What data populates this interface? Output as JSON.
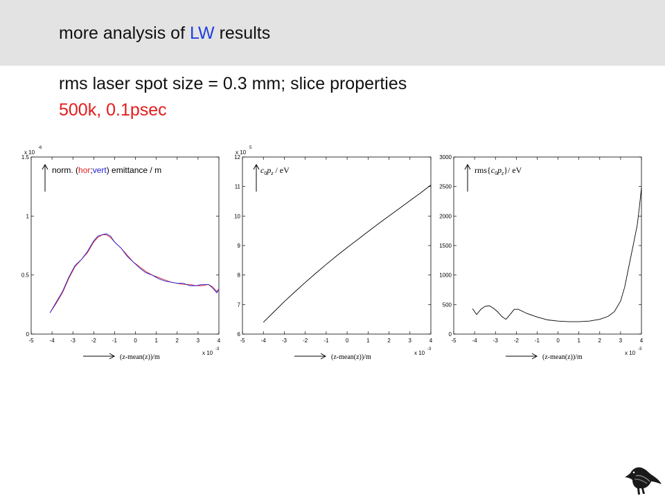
{
  "header": {
    "title_pre": "more analysis of ",
    "title_hl": "LW",
    "title_post": " results",
    "subtitle": "rms laser spot size = 0.3 mm; slice properties",
    "subtitle2": "500k, 0.1psec"
  },
  "colors": {
    "hor": "#e51b1b",
    "vert": "#1a1ad6",
    "accent_blue": "#1f3fe0",
    "accent_red": "#e51b1b"
  },
  "chart_data": [
    {
      "type": "line",
      "ylabel_parts": [
        "norm. (",
        "hor",
        ";",
        "vert",
        ") emittance / m"
      ],
      "xlabel": "(z-mean(z))/m",
      "xlim": [
        -5,
        4
      ],
      "ylim": [
        0,
        1.5
      ],
      "xticks": [
        "-5",
        "-4",
        "-3",
        "-2",
        "-1",
        "0",
        "1",
        "2",
        "3",
        "4"
      ],
      "yticks": [
        "0",
        "0.5",
        "1",
        "1.5"
      ],
      "ytick_values": [
        0,
        0.5,
        1,
        1.5
      ],
      "x_exponent": "x 10",
      "x_exponent_power": "-3",
      "y_exponent": "x 10",
      "y_exponent_power": "-6",
      "series": [
        {
          "name": "hor",
          "x": [
            -4.1,
            -3.8,
            -3.5,
            -3.2,
            -2.9,
            -2.6,
            -2.3,
            -2.0,
            -1.8,
            -1.6,
            -1.4,
            -1.2,
            -1.0,
            -0.7,
            -0.4,
            -0.1,
            0.2,
            0.5,
            0.8,
            1.1,
            1.4,
            1.7,
            2.0,
            2.3,
            2.6,
            2.9,
            3.2,
            3.5,
            3.7,
            3.9,
            4.0
          ],
          "values": [
            0.18,
            0.26,
            0.35,
            0.47,
            0.57,
            0.63,
            0.69,
            0.78,
            0.82,
            0.84,
            0.84,
            0.82,
            0.78,
            0.73,
            0.67,
            0.61,
            0.57,
            0.53,
            0.5,
            0.48,
            0.46,
            0.44,
            0.43,
            0.42,
            0.42,
            0.41,
            0.41,
            0.42,
            0.4,
            0.36,
            0.38
          ]
        },
        {
          "name": "vert",
          "x": [
            -4.1,
            -3.8,
            -3.5,
            -3.2,
            -2.9,
            -2.6,
            -2.3,
            -2.0,
            -1.8,
            -1.6,
            -1.4,
            -1.2,
            -1.0,
            -0.7,
            -0.4,
            -0.1,
            0.2,
            0.5,
            0.8,
            1.1,
            1.4,
            1.7,
            2.0,
            2.3,
            2.6,
            2.9,
            3.2,
            3.5,
            3.7,
            3.9,
            4.0
          ],
          "values": [
            0.18,
            0.27,
            0.36,
            0.48,
            0.58,
            0.63,
            0.7,
            0.79,
            0.83,
            0.84,
            0.85,
            0.83,
            0.78,
            0.73,
            0.66,
            0.61,
            0.56,
            0.52,
            0.5,
            0.47,
            0.45,
            0.44,
            0.43,
            0.43,
            0.41,
            0.41,
            0.42,
            0.42,
            0.39,
            0.35,
            0.38
          ]
        }
      ]
    },
    {
      "type": "line",
      "ylabel_parts": [
        "c",
        "0",
        "p",
        "z",
        " / eV"
      ],
      "xlabel": "(z-mean(z))/m",
      "xlim": [
        -5,
        4
      ],
      "ylim": [
        6,
        12
      ],
      "xticks": [
        "-5",
        "-4",
        "-3",
        "-2",
        "-1",
        "0",
        "1",
        "2",
        "3",
        "4"
      ],
      "yticks": [
        "6",
        "7",
        "8",
        "9",
        "10",
        "11",
        "12"
      ],
      "ytick_values": [
        6,
        7,
        8,
        9,
        10,
        11,
        12
      ],
      "x_exponent": "x 10",
      "x_exponent_power": "-3",
      "y_exponent": "x 10",
      "y_exponent_power": "5",
      "series": [
        {
          "name": "",
          "x": [
            -4.0,
            -3.5,
            -3.0,
            -2.5,
            -2.0,
            -1.5,
            -1.0,
            -0.5,
            0.0,
            0.5,
            1.0,
            1.5,
            2.0,
            2.5,
            3.0,
            3.5,
            4.0
          ],
          "values": [
            6.4,
            6.75,
            7.1,
            7.43,
            7.75,
            8.06,
            8.36,
            8.65,
            8.93,
            9.2,
            9.47,
            9.74,
            10.0,
            10.26,
            10.52,
            10.78,
            11.05
          ]
        }
      ]
    },
    {
      "type": "line",
      "ylabel_parts": [
        "rms{",
        "c",
        "0",
        "p",
        "z",
        "}/ eV"
      ],
      "xlabel": "(z-mean(z))/m",
      "xlim": [
        -5,
        4
      ],
      "ylim": [
        0,
        3000
      ],
      "xticks": [
        "-5",
        "-4",
        "-3",
        "-2",
        "-1",
        "0",
        "1",
        "2",
        "3",
        "4"
      ],
      "yticks": [
        "0",
        "500",
        "1000",
        "1500",
        "2000",
        "2500",
        "3000"
      ],
      "ytick_values": [
        0,
        500,
        1000,
        1500,
        2000,
        2500,
        3000
      ],
      "x_exponent": "x 10",
      "x_exponent_power": "-3",
      "y_exponent": "",
      "y_exponent_power": "",
      "series": [
        {
          "name": "",
          "x": [
            -4.1,
            -3.9,
            -3.7,
            -3.5,
            -3.3,
            -3.1,
            -2.9,
            -2.7,
            -2.5,
            -2.3,
            -2.1,
            -1.9,
            -1.5,
            -1.0,
            -0.5,
            0.0,
            0.5,
            1.0,
            1.5,
            2.0,
            2.4,
            2.7,
            3.0,
            3.2,
            3.4,
            3.6,
            3.8,
            3.9,
            4.0
          ],
          "values": [
            430,
            330,
            420,
            470,
            480,
            440,
            380,
            300,
            250,
            330,
            420,
            420,
            350,
            290,
            240,
            220,
            210,
            210,
            220,
            250,
            300,
            380,
            560,
            800,
            1150,
            1500,
            1850,
            2150,
            2480
          ]
        }
      ]
    }
  ]
}
